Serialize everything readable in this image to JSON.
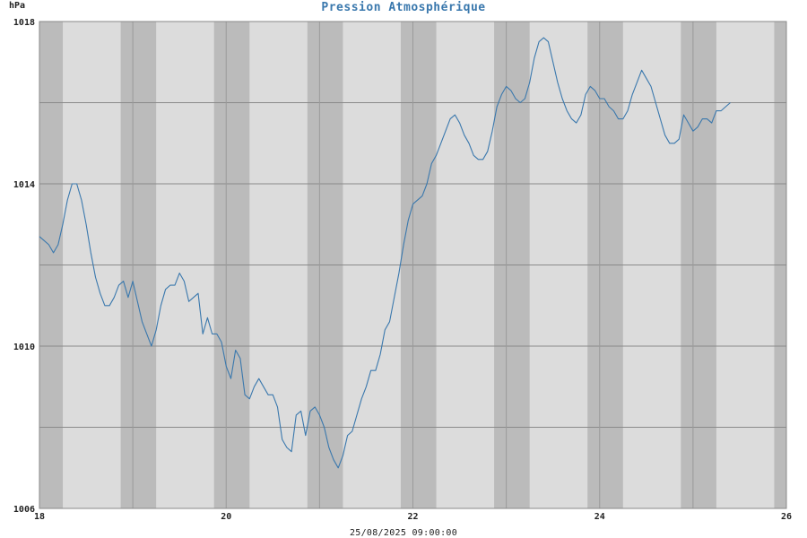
{
  "chart_data": {
    "type": "line",
    "title": "Pression Atmosphérique",
    "ylabel": "hPa",
    "xlabel": "",
    "footer": "25/08/2025 09:00:00",
    "xlim": [
      18,
      26
    ],
    "ylim": [
      1006,
      1018
    ],
    "x_ticks": [
      18,
      20,
      22,
      24,
      26
    ],
    "y_ticks": [
      1006,
      1010,
      1014,
      1018
    ],
    "y_grid": [
      1006,
      1008,
      1010,
      1012,
      1014,
      1016,
      1018
    ],
    "x_grid": [
      18,
      19,
      20,
      21,
      22,
      23,
      24,
      25,
      26
    ],
    "night_bands": [
      [
        18.0,
        18.25
      ],
      [
        18.87,
        19.25
      ],
      [
        19.87,
        20.25
      ],
      [
        20.87,
        21.25
      ],
      [
        21.87,
        22.25
      ],
      [
        22.87,
        23.25
      ],
      [
        23.87,
        24.25
      ],
      [
        24.87,
        25.25
      ],
      [
        25.87,
        26.0
      ]
    ],
    "series": [
      {
        "color": "#3a78ad",
        "points": [
          [
            18.0,
            1012.7
          ],
          [
            18.05,
            1012.6
          ],
          [
            18.1,
            1012.5
          ],
          [
            18.15,
            1012.3
          ],
          [
            18.2,
            1012.5
          ],
          [
            18.25,
            1013.0
          ],
          [
            18.3,
            1013.6
          ],
          [
            18.35,
            1014.0
          ],
          [
            18.4,
            1014.0
          ],
          [
            18.45,
            1013.6
          ],
          [
            18.5,
            1013.0
          ],
          [
            18.55,
            1012.3
          ],
          [
            18.6,
            1011.7
          ],
          [
            18.65,
            1011.3
          ],
          [
            18.7,
            1011.0
          ],
          [
            18.75,
            1011.0
          ],
          [
            18.8,
            1011.2
          ],
          [
            18.85,
            1011.5
          ],
          [
            18.9,
            1011.6
          ],
          [
            18.95,
            1011.2
          ],
          [
            19.0,
            1011.6
          ],
          [
            19.05,
            1011.1
          ],
          [
            19.1,
            1010.6
          ],
          [
            19.15,
            1010.3
          ],
          [
            19.2,
            1010.0
          ],
          [
            19.25,
            1010.4
          ],
          [
            19.3,
            1011.0
          ],
          [
            19.35,
            1011.4
          ],
          [
            19.4,
            1011.5
          ],
          [
            19.45,
            1011.5
          ],
          [
            19.5,
            1011.8
          ],
          [
            19.55,
            1011.6
          ],
          [
            19.6,
            1011.1
          ],
          [
            19.65,
            1011.2
          ],
          [
            19.7,
            1011.3
          ],
          [
            19.75,
            1010.3
          ],
          [
            19.8,
            1010.7
          ],
          [
            19.85,
            1010.3
          ],
          [
            19.9,
            1010.3
          ],
          [
            19.95,
            1010.1
          ],
          [
            20.0,
            1009.5
          ],
          [
            20.05,
            1009.2
          ],
          [
            20.1,
            1009.9
          ],
          [
            20.15,
            1009.7
          ],
          [
            20.2,
            1008.8
          ],
          [
            20.25,
            1008.7
          ],
          [
            20.3,
            1009.0
          ],
          [
            20.35,
            1009.2
          ],
          [
            20.4,
            1009.0
          ],
          [
            20.45,
            1008.8
          ],
          [
            20.5,
            1008.8
          ],
          [
            20.55,
            1008.5
          ],
          [
            20.6,
            1007.7
          ],
          [
            20.65,
            1007.5
          ],
          [
            20.7,
            1007.4
          ],
          [
            20.75,
            1008.3
          ],
          [
            20.8,
            1008.4
          ],
          [
            20.85,
            1007.8
          ],
          [
            20.9,
            1008.4
          ],
          [
            20.95,
            1008.5
          ],
          [
            21.0,
            1008.3
          ],
          [
            21.05,
            1008.0
          ],
          [
            21.1,
            1007.5
          ],
          [
            21.15,
            1007.2
          ],
          [
            21.2,
            1007.0
          ],
          [
            21.25,
            1007.3
          ],
          [
            21.3,
            1007.8
          ],
          [
            21.35,
            1007.9
          ],
          [
            21.4,
            1008.3
          ],
          [
            21.45,
            1008.7
          ],
          [
            21.5,
            1009.0
          ],
          [
            21.55,
            1009.4
          ],
          [
            21.6,
            1009.4
          ],
          [
            21.65,
            1009.8
          ],
          [
            21.7,
            1010.4
          ],
          [
            21.75,
            1010.6
          ],
          [
            21.8,
            1011.2
          ],
          [
            21.85,
            1011.8
          ],
          [
            21.9,
            1012.5
          ],
          [
            21.95,
            1013.1
          ],
          [
            22.0,
            1013.5
          ],
          [
            22.05,
            1013.6
          ],
          [
            22.1,
            1013.7
          ],
          [
            22.15,
            1014.0
          ],
          [
            22.2,
            1014.5
          ],
          [
            22.25,
            1014.7
          ],
          [
            22.3,
            1015.0
          ],
          [
            22.35,
            1015.3
          ],
          [
            22.4,
            1015.6
          ],
          [
            22.45,
            1015.7
          ],
          [
            22.5,
            1015.5
          ],
          [
            22.55,
            1015.2
          ],
          [
            22.6,
            1015.0
          ],
          [
            22.65,
            1014.7
          ],
          [
            22.7,
            1014.6
          ],
          [
            22.75,
            1014.6
          ],
          [
            22.8,
            1014.8
          ],
          [
            22.85,
            1015.3
          ],
          [
            22.9,
            1015.9
          ],
          [
            22.95,
            1016.2
          ],
          [
            23.0,
            1016.4
          ],
          [
            23.05,
            1016.3
          ],
          [
            23.1,
            1016.1
          ],
          [
            23.15,
            1016.0
          ],
          [
            23.2,
            1016.1
          ],
          [
            23.25,
            1016.5
          ],
          [
            23.3,
            1017.1
          ],
          [
            23.35,
            1017.5
          ],
          [
            23.4,
            1017.6
          ],
          [
            23.45,
            1017.5
          ],
          [
            23.5,
            1017.0
          ],
          [
            23.55,
            1016.5
          ],
          [
            23.6,
            1016.1
          ],
          [
            23.65,
            1015.8
          ],
          [
            23.7,
            1015.6
          ],
          [
            23.75,
            1015.5
          ],
          [
            23.8,
            1015.7
          ],
          [
            23.85,
            1016.2
          ],
          [
            23.9,
            1016.4
          ],
          [
            23.95,
            1016.3
          ],
          [
            24.0,
            1016.1
          ],
          [
            24.05,
            1016.1
          ],
          [
            24.1,
            1015.9
          ],
          [
            24.15,
            1015.8
          ],
          [
            24.2,
            1015.6
          ],
          [
            24.25,
            1015.6
          ],
          [
            24.3,
            1015.8
          ],
          [
            24.35,
            1016.2
          ],
          [
            24.4,
            1016.5
          ],
          [
            24.45,
            1016.8
          ],
          [
            24.5,
            1016.6
          ],
          [
            24.55,
            1016.4
          ],
          [
            24.6,
            1016.0
          ],
          [
            24.65,
            1015.6
          ],
          [
            24.7,
            1015.2
          ],
          [
            24.75,
            1015.0
          ],
          [
            24.8,
            1015.0
          ],
          [
            24.85,
            1015.1
          ],
          [
            24.9,
            1015.7
          ],
          [
            24.95,
            1015.5
          ],
          [
            25.0,
            1015.3
          ],
          [
            25.05,
            1015.4
          ],
          [
            25.1,
            1015.6
          ],
          [
            25.15,
            1015.6
          ],
          [
            25.2,
            1015.5
          ],
          [
            25.25,
            1015.8
          ],
          [
            25.3,
            1015.8
          ],
          [
            25.35,
            1015.9
          ],
          [
            25.4,
            1016.0
          ]
        ]
      }
    ]
  }
}
